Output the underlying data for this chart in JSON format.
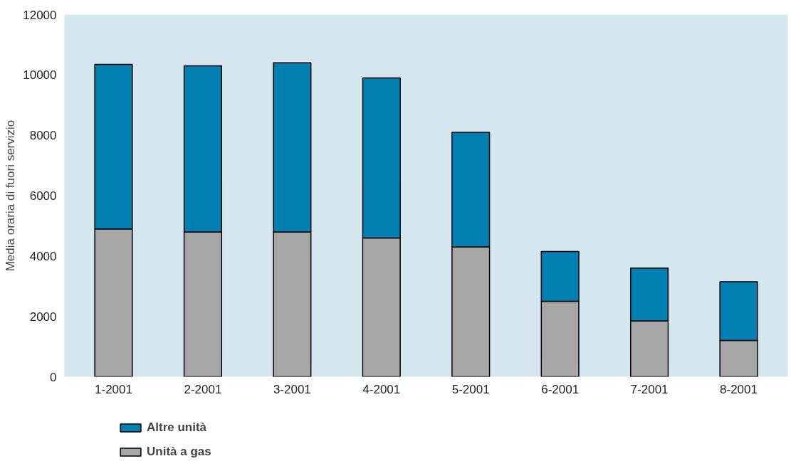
{
  "chart_data": {
    "type": "bar",
    "stacked": true,
    "ylabel": "Media oraria di fuori servizio",
    "categories": [
      "1-2001",
      "2-2001",
      "3-2001",
      "4-2001",
      "5-2001",
      "6-2001",
      "7-2001",
      "8-2001"
    ],
    "series": [
      {
        "name": "Unità a gas",
        "color": "#a6a6a6",
        "values": [
          4900,
          4800,
          4800,
          4600,
          4300,
          2500,
          1850,
          1200
        ]
      },
      {
        "name": "Altre unità",
        "color": "#0080b0",
        "values": [
          5450,
          5500,
          5600,
          5300,
          3800,
          1650,
          1750,
          1950
        ]
      }
    ],
    "ylim": [
      0,
      12000
    ],
    "yticks": [
      0,
      2000,
      4000,
      6000,
      8000,
      10000,
      12000
    ],
    "legend": "bottom"
  }
}
